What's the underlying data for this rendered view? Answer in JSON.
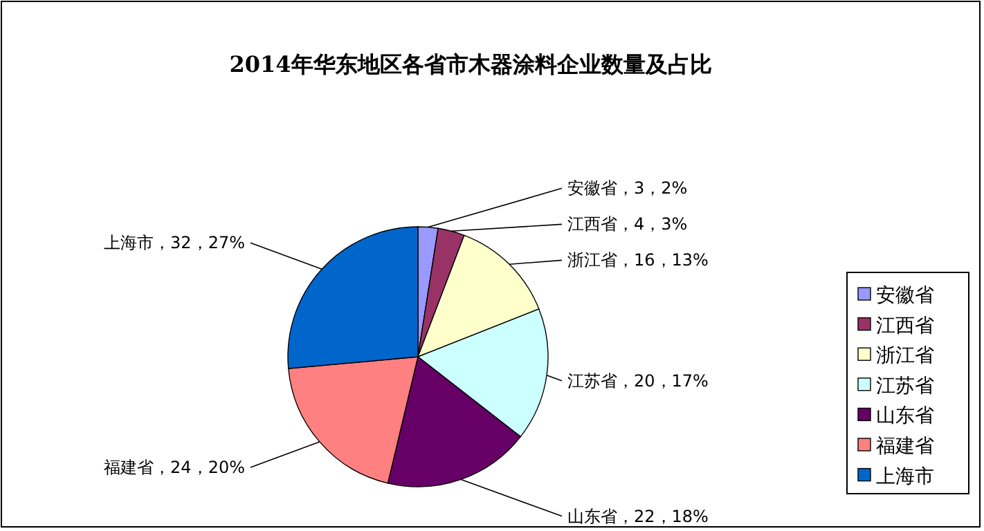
{
  "chart_data": {
    "type": "pie",
    "title": "2014年华东地区各省市木器涂料企业数量及占比",
    "categories": [
      "安徽省",
      "江西省",
      "浙江省",
      "江苏省",
      "山东省",
      "福建省",
      "上海市"
    ],
    "values": [
      3,
      4,
      16,
      20,
      22,
      24,
      32
    ],
    "colors": [
      "#9999ff",
      "#993366",
      "#ffffcc",
      "#ccffff",
      "#660066",
      "#ff8080",
      "#0066cc"
    ],
    "value_labels": [
      "安徽省，3，2%",
      "江西省，4，3%",
      "浙江省，16，13%",
      "江苏省，20，17%",
      "山东省，22，18%",
      "福建省，24，20%",
      "上海市，32，27%"
    ],
    "legend": "right"
  }
}
